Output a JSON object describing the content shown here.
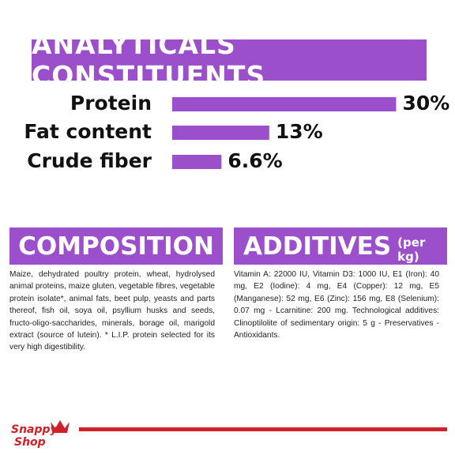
{
  "header": {
    "title": "ANALYTICALS CONSTITUENTS"
  },
  "chart_data": {
    "type": "bar",
    "orientation": "horizontal",
    "color": "#9c4fcb",
    "categories": [
      "Protein",
      "Fat content",
      "Crude fiber"
    ],
    "values": [
      30,
      13,
      6.6
    ],
    "value_labels": [
      "30%",
      "13%",
      "6.6%"
    ]
  },
  "composition": {
    "title": "COMPOSITION",
    "text": "Maize, dehydrated poultry protein, wheat, hydrolysed animal proteins, maize gluten, vegetable fibres, vegetable protein isolate*, animal fats, beet pulp, yeasts and parts thereof, fish oil, soya oil, psyllium husks and seeds, fructo-oligo-saccharides, minerals, borage oil, marigold extract (source of lutein). * L.I.P. protein selected for its very high digestibility."
  },
  "additives": {
    "title": "ADDITIVES",
    "subtitle": "(per kg)",
    "text": "Vitamin A: 22000 IU, Vitamin D3: 1000 IU, E1 (Iron): 40 mg, E2 (Iodine): 4 mg, E4 (Copper): 12 mg, E5 (Manganese): 52 mg, E6 (Zinc): 156 mg, E8 (Selenium): 0.07 mg - Lcarnitine: 200 mg. Technological additives: Clinoptilolite of sedimentary origin: 5 g - Preservatives - Antioxidants."
  },
  "logo": {
    "line1": "Snappy",
    "line2": "Shop"
  }
}
